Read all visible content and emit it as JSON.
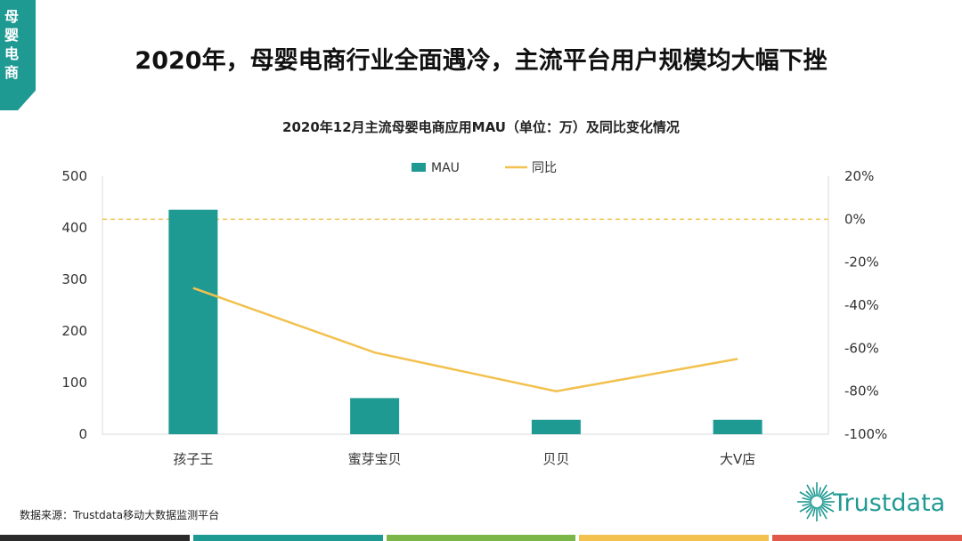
{
  "side_tab": {
    "label": "母婴电商",
    "color": "#1f9a93"
  },
  "headline": "2020年，母婴电商行业全面遇冷，主流平台用户规模均大幅下挫",
  "source": "数据来源：Trustdata移动大数据监测平台",
  "logo": {
    "text": "Trustdata",
    "color": "#1f9a93",
    "icon": "starburst-icon"
  },
  "footer_colors": [
    "#2b2b2b",
    "#1f9a93",
    "#7ab648",
    "#f2c14e",
    "#e0594a"
  ],
  "chart_data": {
    "type": "bar",
    "title": "2020年12月主流母婴电商应用MAU（单位：万）及同比变化情况",
    "categories": [
      "孩子王",
      "蜜芽宝贝",
      "贝贝",
      "大V店"
    ],
    "series": [
      {
        "name": "MAU",
        "kind": "bar",
        "axis": "left",
        "color": "#1f9a93",
        "values": [
          435,
          70,
          28,
          28
        ]
      },
      {
        "name": "同比",
        "kind": "line",
        "axis": "right",
        "color": "#f2c14e",
        "values": [
          -32,
          -62,
          -80,
          -65
        ]
      }
    ],
    "y_left": {
      "min": 0,
      "max": 500,
      "ticks": [
        0,
        100,
        200,
        300,
        400,
        500
      ],
      "labels": [
        "0",
        "100",
        "200",
        "300",
        "400",
        "500"
      ]
    },
    "y_right": {
      "min": -100,
      "max": 20,
      "ticks": [
        -100,
        -80,
        -60,
        -40,
        -20,
        0,
        20
      ],
      "labels": [
        "-100%",
        "-80%",
        "-60%",
        "-40%",
        "-20%",
        "0%",
        "20%"
      ]
    },
    "reference_line": {
      "value": 0,
      "axis": "right",
      "style": "dashed",
      "color": "#f2c14e"
    },
    "legend": {
      "position": "top",
      "items": [
        "MAU",
        "同比"
      ]
    },
    "grid": false
  }
}
